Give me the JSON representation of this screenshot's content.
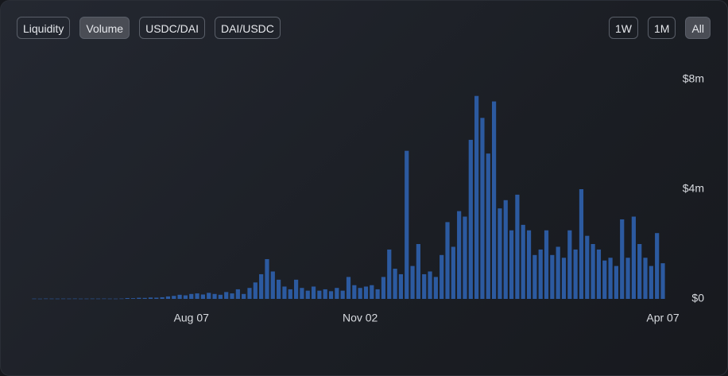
{
  "tabs": [
    "Liquidity",
    "Volume",
    "USDC/DAI",
    "DAI/USDC"
  ],
  "ranges": [
    "1W",
    "1M",
    "All"
  ],
  "chart_data": {
    "type": "bar",
    "color": "#2c5aa0",
    "categories": [
      null,
      null,
      null,
      null,
      null,
      null,
      null,
      null,
      null,
      null,
      null,
      null,
      null,
      null,
      null,
      null,
      null,
      null,
      null,
      null,
      null,
      null,
      null,
      null,
      null,
      null,
      null,
      "Aug 07",
      null,
      null,
      null,
      null,
      null,
      null,
      null,
      null,
      null,
      null,
      null,
      null,
      null,
      null,
      null,
      null,
      null,
      null,
      null,
      null,
      null,
      null,
      null,
      null,
      null,
      null,
      null,
      null,
      "Nov 02",
      null,
      null,
      null,
      null,
      null,
      null,
      null,
      null,
      null,
      null,
      null,
      null,
      null,
      null,
      null,
      null,
      null,
      null,
      null,
      null,
      null,
      null,
      null,
      null,
      null,
      null,
      null,
      null,
      null,
      null,
      null,
      null,
      null,
      null,
      null,
      null,
      null,
      null,
      null,
      null,
      null,
      null,
      null,
      null,
      null,
      null,
      null,
      null,
      null,
      null,
      null,
      "Apr 07"
    ],
    "values": [
      10000,
      8000,
      12000,
      10000,
      9000,
      11000,
      10000,
      12000,
      9000,
      10000,
      11000,
      10000,
      12000,
      10000,
      9000,
      12000,
      30000,
      25000,
      40000,
      35000,
      50000,
      45000,
      60000,
      90000,
      110000,
      150000,
      130000,
      180000,
      200000,
      160000,
      220000,
      180000,
      150000,
      250000,
      200000,
      350000,
      180000,
      400000,
      600000,
      900000,
      1450000,
      1000000,
      700000,
      450000,
      350000,
      700000,
      400000,
      300000,
      450000,
      300000,
      350000,
      280000,
      400000,
      300000,
      800000,
      500000,
      400000,
      450000,
      500000,
      350000,
      800000,
      1800000,
      1100000,
      900000,
      5400000,
      1200000,
      2000000,
      900000,
      1000000,
      800000,
      1600000,
      2800000,
      1900000,
      3200000,
      3000000,
      5800000,
      7400000,
      6600000,
      5300000,
      7200000,
      3300000,
      3600000,
      2500000,
      3800000,
      2700000,
      2500000,
      1600000,
      1800000,
      2500000,
      1600000,
      1900000,
      1500000,
      2500000,
      1800000,
      4000000,
      2300000,
      2000000,
      1800000,
      1400000,
      1500000,
      1200000,
      2900000,
      1500000,
      3000000,
      2000000,
      1500000,
      1200000,
      2400000,
      1300000
    ],
    "ylim": [
      0,
      8000000
    ],
    "yticks": [
      {
        "value": 0,
        "label": "$0"
      },
      {
        "value": 4000000,
        "label": "$4m"
      },
      {
        "value": 8000000,
        "label": "$8m"
      }
    ],
    "grid": false
  }
}
